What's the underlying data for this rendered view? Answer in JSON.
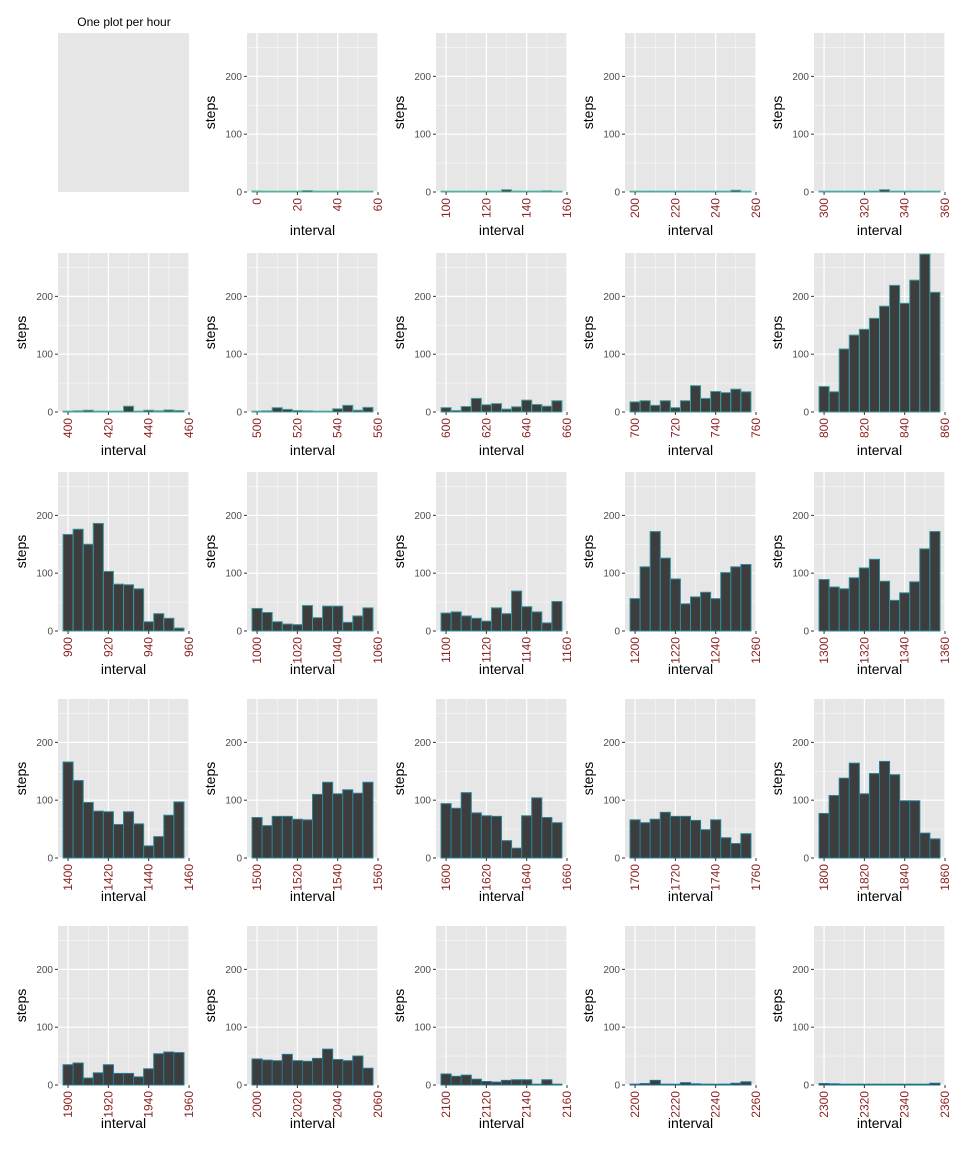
{
  "title": "One plot per hour",
  "chart_data": {
    "type": "bar",
    "layout": "small-multiples",
    "ylabel": "steps",
    "xlabel": "interval",
    "ylim": [
      0,
      275
    ],
    "yticks": [
      0,
      100,
      200
    ],
    "grid": true,
    "legend": "none",
    "colors": {
      "panel_bg": "#e6e6e6",
      "grid": "#ffffff",
      "bar_fill": "#3d3d3d",
      "x_tick_label": "#8b2323",
      "y_tick_label": "#4d4d4d",
      "axis_title": "#000000",
      "bar_outline_scale": [
        "#55b3a0",
        "#2e8fa0",
        "#1f6f8f"
      ]
    },
    "panels": [
      {
        "hour": 0,
        "empty": true,
        "values": [],
        "xticks": []
      },
      {
        "hour": 0,
        "xlim": [
          -5,
          60
        ],
        "xticks": [
          0,
          20,
          40,
          60
        ],
        "values": [
          1.7,
          0.3,
          0.1,
          0.2,
          0.0,
          2.5,
          0.5,
          0.8,
          0.0,
          1.5,
          1.3,
          0.7
        ]
      },
      {
        "hour": 1,
        "xlim": [
          95,
          160
        ],
        "xticks": [
          100,
          120,
          140,
          160
        ],
        "values": [
          0.0,
          0.5,
          0.0,
          0.0,
          0.0,
          0.0,
          4.0,
          1.5,
          0.5,
          1.5,
          2.0,
          0.5
        ]
      },
      {
        "hour": 2,
        "xlim": [
          195,
          260
        ],
        "xticks": [
          200,
          220,
          240,
          260
        ],
        "values": [
          0.0,
          0.0,
          0.0,
          0.5,
          0.8,
          0.5,
          0.0,
          0.0,
          0.0,
          0.0,
          3.0,
          1.0
        ]
      },
      {
        "hour": 3,
        "xlim": [
          295,
          360
        ],
        "xticks": [
          300,
          320,
          340,
          360
        ],
        "values": [
          0.0,
          0.0,
          0.5,
          0.5,
          0.0,
          0.0,
          4.0,
          0.5,
          0.5,
          0.0,
          0.0,
          0.0
        ]
      },
      {
        "hour": 4,
        "xlim": [
          395,
          460
        ],
        "xticks": [
          400,
          420,
          440,
          460
        ],
        "values": [
          0.0,
          2.0,
          3.0,
          0.0,
          1.0,
          1.0,
          10.0,
          0.5,
          3.0,
          2.0,
          3.5,
          2.5
        ]
      },
      {
        "hour": 5,
        "xlim": [
          495,
          560
        ],
        "xticks": [
          500,
          520,
          540,
          560
        ],
        "values": [
          0.0,
          2.0,
          7.5,
          4.5,
          2.5,
          2.0,
          0.0,
          0.0,
          5.5,
          11.5,
          3.0,
          8.0
        ]
      },
      {
        "hour": 6,
        "xlim": [
          595,
          660
        ],
        "xticks": [
          600,
          620,
          640,
          660
        ],
        "values": [
          7.5,
          2.5,
          9.5,
          23.5,
          12.5,
          14.5,
          5.0,
          9.0,
          20.5,
          13.0,
          10.0,
          19.5
        ]
      },
      {
        "hour": 7,
        "xlim": [
          695,
          760
        ],
        "xticks": [
          700,
          720,
          740,
          760
        ],
        "values": [
          17.5,
          19.5,
          11.5,
          19.5,
          7.5,
          19.5,
          45.5,
          23.5,
          35.5,
          33.5,
          39.5,
          35.0
        ]
      },
      {
        "hour": 8,
        "xlim": [
          795,
          860
        ],
        "xticks": [
          800,
          820,
          840,
          860
        ],
        "values": [
          44.0,
          35.0,
          109.0,
          133.0,
          143.0,
          162.0,
          183.0,
          219.0,
          188.0,
          228.0,
          273.0,
          207.0
        ]
      },
      {
        "hour": 9,
        "xlim": [
          895,
          960
        ],
        "xticks": [
          900,
          920,
          940,
          960
        ],
        "values": [
          167.0,
          176.0,
          150.0,
          186.0,
          103.0,
          81.0,
          80.0,
          73.0,
          16.0,
          30.0,
          22.0,
          5.0
        ]
      },
      {
        "hour": 10,
        "xlim": [
          995,
          1060
        ],
        "xticks": [
          1000,
          1020,
          1040,
          1060
        ],
        "values": [
          39.0,
          32.0,
          16.0,
          12.0,
          11.0,
          44.0,
          23.0,
          43.0,
          43.0,
          15.0,
          26.0,
          40.0
        ]
      },
      {
        "hour": 11,
        "xlim": [
          1095,
          1160
        ],
        "xticks": [
          1100,
          1120,
          1140,
          1160
        ],
        "values": [
          31.0,
          33.0,
          26.0,
          22.0,
          17.0,
          40.0,
          30.0,
          69.0,
          42.0,
          33.0,
          14.0,
          51.0
        ]
      },
      {
        "hour": 12,
        "xlim": [
          1195,
          1260
        ],
        "xticks": [
          1200,
          1220,
          1240,
          1260
        ],
        "values": [
          56.0,
          111.0,
          172.0,
          126.0,
          90.0,
          47.0,
          59.0,
          67.0,
          56.0,
          101.0,
          111.0,
          115.0
        ]
      },
      {
        "hour": 13,
        "xlim": [
          1295,
          1360
        ],
        "xticks": [
          1300,
          1320,
          1340,
          1360
        ],
        "values": [
          89.0,
          76.0,
          73.0,
          92.0,
          109.0,
          124.0,
          86.0,
          53.0,
          66.0,
          85.0,
          142.0,
          172.0
        ]
      },
      {
        "hour": 14,
        "xlim": [
          1395,
          1460
        ],
        "xticks": [
          1400,
          1420,
          1440,
          1460
        ],
        "values": [
          166.0,
          134.0,
          96.0,
          81.0,
          80.0,
          58.0,
          80.0,
          59.0,
          21.0,
          37.0,
          74.0,
          97.0
        ]
      },
      {
        "hour": 15,
        "xlim": [
          1495,
          1560
        ],
        "xticks": [
          1500,
          1520,
          1540,
          1560
        ],
        "values": [
          70.0,
          56.0,
          72.0,
          72.0,
          67.0,
          66.0,
          110.0,
          131.0,
          111.0,
          118.0,
          112.0,
          131.0
        ]
      },
      {
        "hour": 16,
        "xlim": [
          1595,
          1660
        ],
        "xticks": [
          1600,
          1620,
          1640,
          1660
        ],
        "values": [
          94.0,
          86.0,
          113.0,
          78.0,
          73.0,
          72.0,
          30.0,
          17.0,
          73.0,
          104.0,
          70.0,
          61.0
        ]
      },
      {
        "hour": 17,
        "xlim": [
          1695,
          1760
        ],
        "xticks": [
          1700,
          1720,
          1740,
          1760
        ],
        "values": [
          66.0,
          61.0,
          67.0,
          79.0,
          72.0,
          72.0,
          65.0,
          49.0,
          66.0,
          35.0,
          25.0,
          42.0
        ]
      },
      {
        "hour": 18,
        "xlim": [
          1795,
          1860
        ],
        "xticks": [
          1800,
          1820,
          1840,
          1860
        ],
        "values": [
          77.0,
          108.0,
          138.0,
          164.0,
          111.0,
          146.0,
          167.0,
          144.0,
          99.0,
          99.0,
          43.0,
          33.0
        ]
      },
      {
        "hour": 19,
        "xlim": [
          1895,
          1960
        ],
        "xticks": [
          1900,
          1920,
          1940,
          1960
        ],
        "values": [
          35.0,
          38.0,
          12.0,
          21.0,
          35.0,
          20.0,
          20.0,
          14.0,
          28.0,
          54.0,
          57.0,
          56.0
        ]
      },
      {
        "hour": 20,
        "xlim": [
          1995,
          2060
        ],
        "xticks": [
          2000,
          2020,
          2040,
          2060
        ],
        "values": [
          45.0,
          43.0,
          42.0,
          53.0,
          42.0,
          41.0,
          46.0,
          62.0,
          44.0,
          42.0,
          50.0,
          29.0
        ]
      },
      {
        "hour": 21,
        "xlim": [
          2095,
          2160
        ],
        "xticks": [
          2100,
          2120,
          2140,
          2160
        ],
        "values": [
          19.0,
          15.0,
          17.0,
          10.0,
          6.0,
          5.0,
          8.0,
          9.0,
          9.0,
          0.5,
          9.0,
          1.0
        ]
      },
      {
        "hour": 22,
        "xlim": [
          2195,
          2260
        ],
        "xticks": [
          2200,
          2220,
          2240,
          2260
        ],
        "values": [
          1.5,
          2.5,
          8.0,
          1.0,
          0.0,
          4.0,
          2.0,
          1.0,
          0.0,
          1.5,
          3.0,
          5.5
        ]
      },
      {
        "hour": 23,
        "xlim": [
          2295,
          2360
        ],
        "xticks": [
          2300,
          2320,
          2340,
          2360
        ],
        "values": [
          2.5,
          2.0,
          0.5,
          0.5,
          0.0,
          0.5,
          0.5,
          0.5,
          0.5,
          0.5,
          1.0,
          3.0
        ]
      }
    ]
  }
}
